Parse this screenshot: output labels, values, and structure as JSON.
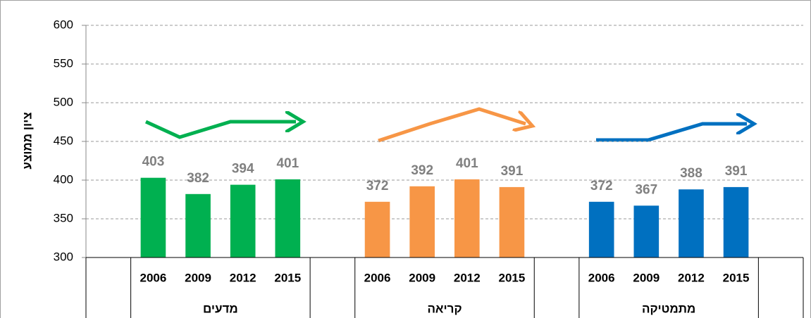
{
  "chart_data": {
    "type": "bar",
    "ylabel": "ציון ממוצע",
    "ylim": [
      300,
      600
    ],
    "yticks": [
      300,
      350,
      400,
      450,
      500,
      550,
      600
    ],
    "grid": true,
    "groups": [
      {
        "name": "מדעים",
        "color": "#00b050",
        "categories": [
          "2006",
          "2009",
          "2012",
          "2015"
        ],
        "values": [
          403,
          382,
          394,
          401
        ]
      },
      {
        "name": "קריאה",
        "color": "#f79646",
        "categories": [
          "2006",
          "2009",
          "2012",
          "2015"
        ],
        "values": [
          372,
          392,
          401,
          391
        ]
      },
      {
        "name": "מתמטיקה",
        "color": "#0070c0",
        "categories": [
          "2006",
          "2009",
          "2012",
          "2015"
        ],
        "values": [
          372,
          367,
          388,
          391
        ]
      }
    ]
  }
}
